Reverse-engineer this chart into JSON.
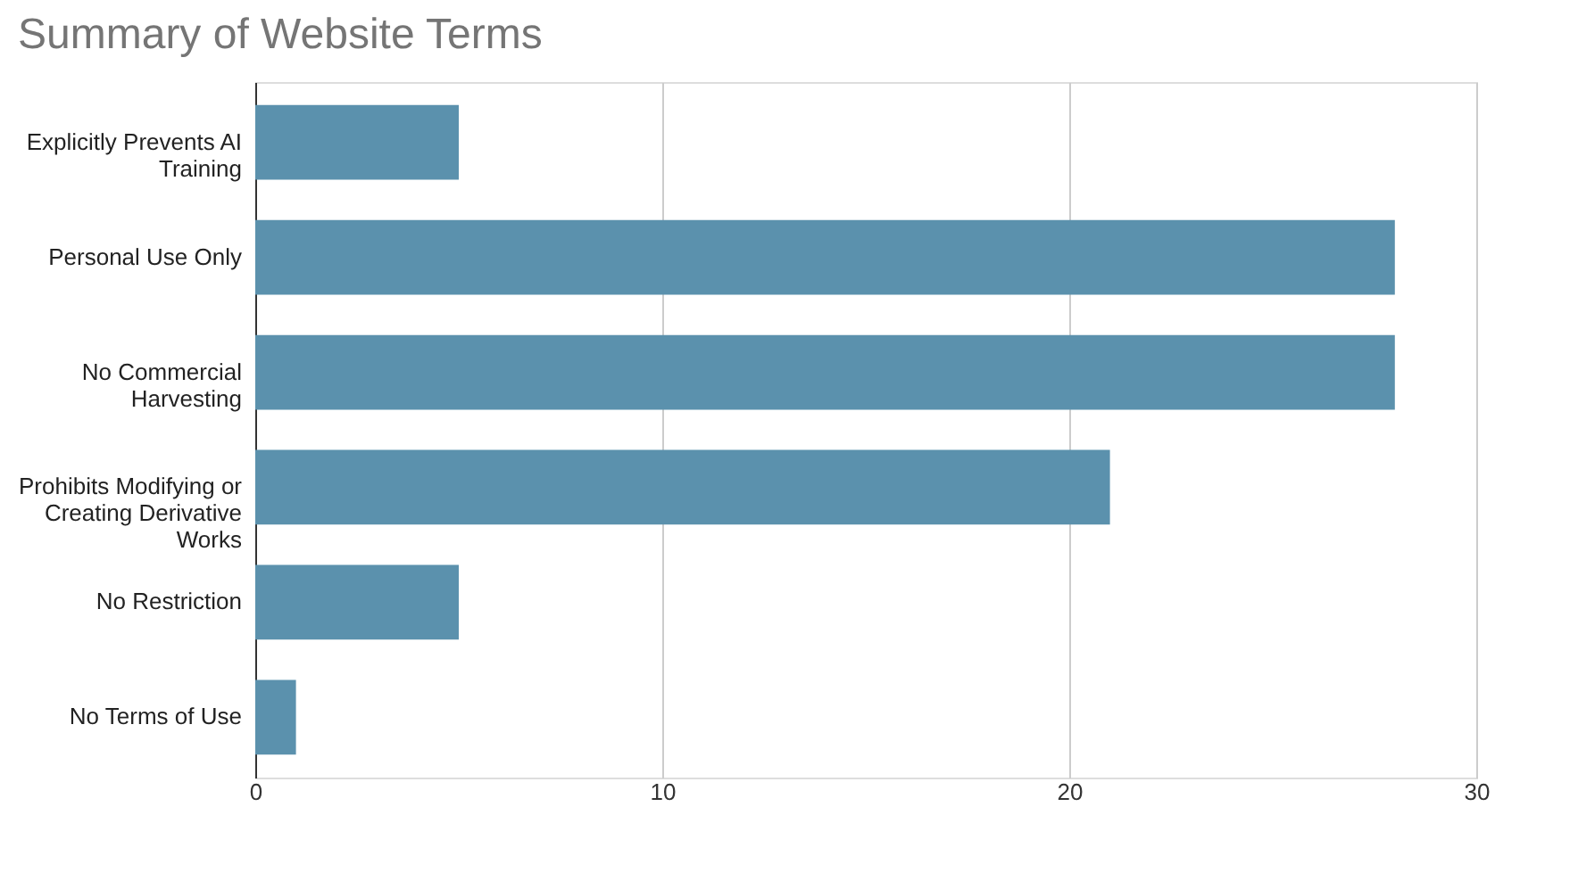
{
  "chart_data": {
    "type": "bar",
    "orientation": "horizontal",
    "title": "Summary of Website Terms",
    "categories": [
      "Explicitly Prevents AI Training",
      "Personal Use Only",
      "No Commercial Harvesting",
      "Prohibits Modifying or Creating Derivative Works",
      "No Restriction",
      "No Terms of Use"
    ],
    "values": [
      5,
      28,
      28,
      21,
      5,
      1
    ],
    "color": "#5b91ad",
    "xlim": [
      0,
      30
    ],
    "xticks": [
      0,
      10,
      20,
      30
    ],
    "grid": "x"
  }
}
